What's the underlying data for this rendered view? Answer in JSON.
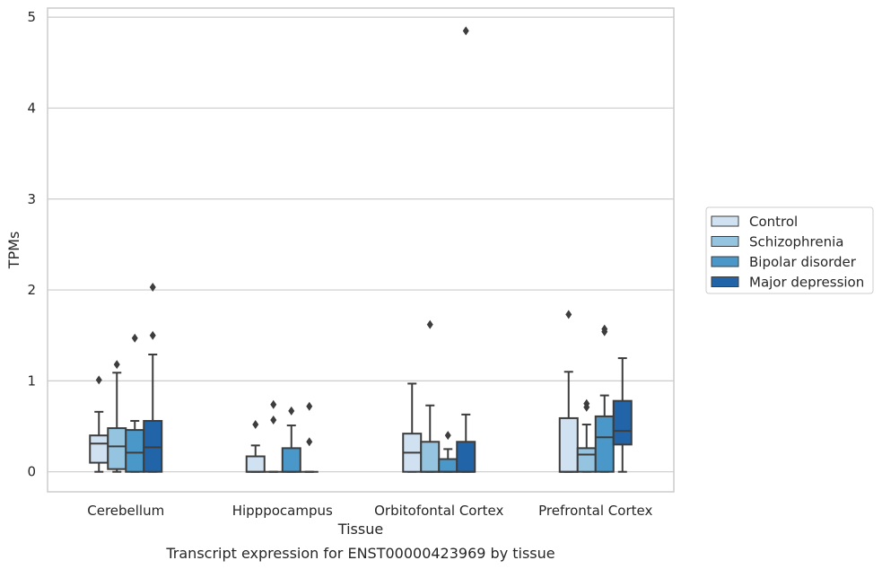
{
  "chart_data": {
    "type": "box",
    "title": "",
    "caption": "Transcript expression for ENST00000423969 by tissue",
    "xlabel": "Tissue",
    "ylabel": "TPMs",
    "ylim": [
      -0.22,
      5.1
    ],
    "yticks": [
      0,
      1,
      2,
      3,
      4,
      5
    ],
    "categories": [
      "Cerebellum",
      "Hipppocampus",
      "Orbitofontal Cortex",
      "Prefrontal Cortex"
    ],
    "grid": true,
    "legend_position": "right",
    "series": [
      {
        "name": "Control",
        "color": "#d0e1f2",
        "boxes": [
          {
            "q1": 0.1,
            "median": 0.31,
            "q3": 0.4,
            "whisker_low": 0.0,
            "whisker_high": 0.66,
            "outliers": [
              1.01
            ]
          },
          {
            "q1": 0.0,
            "median": 0.0,
            "q3": 0.17,
            "whisker_low": 0.0,
            "whisker_high": 0.29,
            "outliers": [
              0.52
            ]
          },
          {
            "q1": 0.0,
            "median": 0.21,
            "q3": 0.42,
            "whisker_low": 0.0,
            "whisker_high": 0.97,
            "outliers": []
          },
          {
            "q1": 0.0,
            "median": 0.0,
            "q3": 0.59,
            "whisker_low": 0.0,
            "whisker_high": 1.1,
            "outliers": [
              1.73
            ]
          }
        ]
      },
      {
        "name": "Schizophrenia",
        "color": "#94c4df",
        "boxes": [
          {
            "q1": 0.03,
            "median": 0.28,
            "q3": 0.48,
            "whisker_low": 0.0,
            "whisker_high": 1.09,
            "outliers": [
              1.18
            ]
          },
          {
            "q1": 0.0,
            "median": 0.0,
            "q3": 0.0,
            "whisker_low": 0.0,
            "whisker_high": 0.0,
            "outliers": [
              0.57,
              0.74
            ]
          },
          {
            "q1": 0.0,
            "median": 0.0,
            "q3": 0.33,
            "whisker_low": 0.0,
            "whisker_high": 0.73,
            "outliers": [
              1.62
            ]
          },
          {
            "q1": 0.0,
            "median": 0.19,
            "q3": 0.26,
            "whisker_low": 0.0,
            "whisker_high": 0.52,
            "outliers": [
              0.71,
              0.75
            ]
          }
        ]
      },
      {
        "name": "Bipolar disorder",
        "color": "#4a98c9",
        "boxes": [
          {
            "q1": 0.0,
            "median": 0.21,
            "q3": 0.46,
            "whisker_low": 0.0,
            "whisker_high": 0.56,
            "outliers": [
              1.47
            ]
          },
          {
            "q1": 0.0,
            "median": 0.0,
            "q3": 0.26,
            "whisker_low": 0.0,
            "whisker_high": 0.51,
            "outliers": [
              0.67
            ]
          },
          {
            "q1": 0.0,
            "median": 0.0,
            "q3": 0.14,
            "whisker_low": 0.0,
            "whisker_high": 0.25,
            "outliers": [
              0.4
            ]
          },
          {
            "q1": 0.0,
            "median": 0.38,
            "q3": 0.61,
            "whisker_low": 0.0,
            "whisker_high": 0.84,
            "outliers": [
              1.54,
              1.57
            ]
          }
        ]
      },
      {
        "name": "Major depression",
        "color": "#2264a8",
        "boxes": [
          {
            "q1": 0.0,
            "median": 0.27,
            "q3": 0.56,
            "whisker_low": 0.0,
            "whisker_high": 1.29,
            "outliers": [
              1.5,
              2.03
            ]
          },
          {
            "q1": 0.0,
            "median": 0.0,
            "q3": 0.0,
            "whisker_low": 0.0,
            "whisker_high": 0.0,
            "outliers": [
              0.33,
              0.72
            ]
          },
          {
            "q1": 0.0,
            "median": 0.0,
            "q3": 0.33,
            "whisker_low": 0.0,
            "whisker_high": 0.63,
            "outliers": [
              4.85
            ]
          },
          {
            "q1": 0.3,
            "median": 0.45,
            "q3": 0.78,
            "whisker_low": 0.0,
            "whisker_high": 1.25,
            "outliers": []
          }
        ]
      }
    ]
  }
}
